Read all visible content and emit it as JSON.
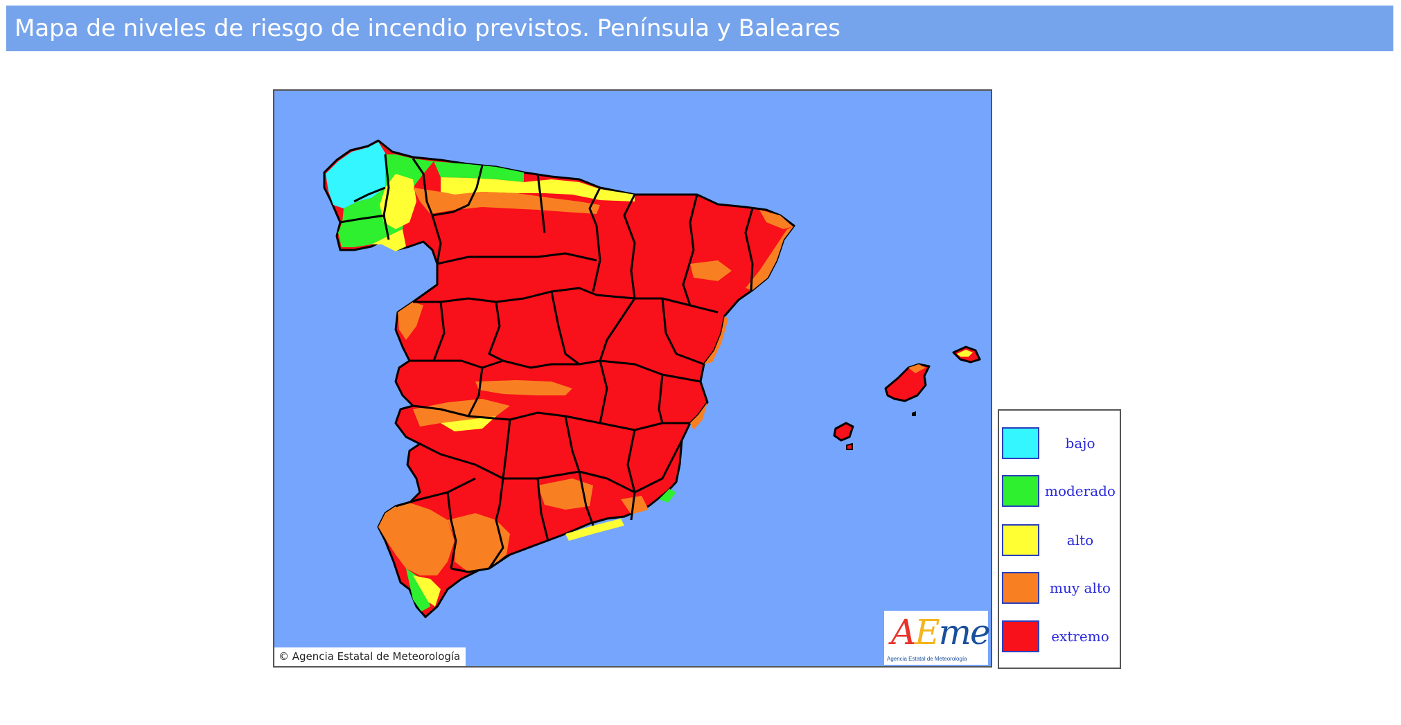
{
  "header": {
    "title": "Mapa de niveles de riesgo de incendio previstos. Península y Baleares"
  },
  "map": {
    "copyright": "© Agencia Estatal de Meteorología",
    "colors": {
      "sea": "#75a5fc",
      "bajo": "#33f6ff",
      "moderado": "#2ef02e",
      "alto": "#ffff33",
      "muy_alto": "#f98022",
      "extremo": "#f8101a"
    },
    "logo": {
      "a": "A",
      "e": "E",
      "met": "met",
      "subtitle": "Agencia Estatal de Meteorología"
    }
  },
  "legend": {
    "items": [
      {
        "label": "bajo",
        "color": "#33f6ff"
      },
      {
        "label": "moderado",
        "color": "#2ef02e"
      },
      {
        "label": "alto",
        "color": "#ffff33"
      },
      {
        "label": "muy alto",
        "color": "#f98022"
      },
      {
        "label": "extremo",
        "color": "#f8101a"
      }
    ]
  }
}
